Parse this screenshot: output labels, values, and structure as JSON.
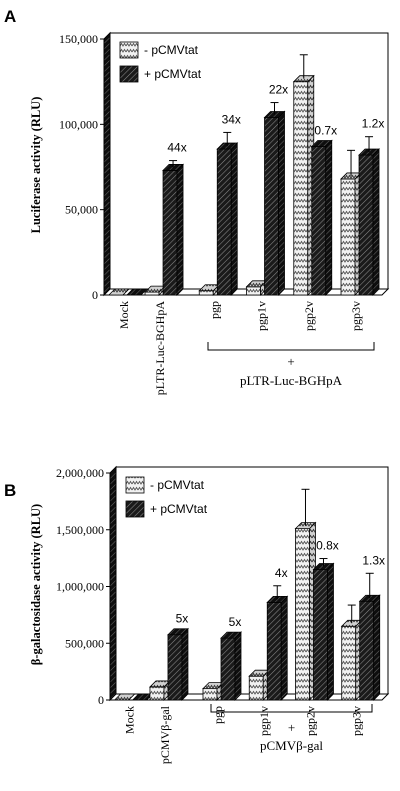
{
  "chart_data": [
    {
      "panel_label": "A",
      "type": "bar",
      "ylabel": "Luciferase activity (RLU)",
      "ylim": [
        0,
        150000
      ],
      "yticks": [
        0,
        50000,
        100000,
        150000
      ],
      "ytick_labels": [
        "0",
        "50,000",
        "100,000",
        "150,000"
      ],
      "categories": [
        "Mock",
        "pLTR-Luc-BGHpA",
        "pgp",
        "pgp1v",
        "pgp2v",
        "pgp3v"
      ],
      "series": [
        {
          "name": "- pCMVtat",
          "values": [
            0,
            1700,
            2500,
            4800,
            125000,
            68000
          ],
          "errors": [
            0,
            0,
            0,
            0,
            14000,
            15000
          ]
        },
        {
          "name": "+ pCMVtat",
          "values": [
            0,
            73000,
            85500,
            104000,
            87000,
            82000
          ],
          "errors": [
            0,
            4000,
            8000,
            7000,
            0,
            9000
          ]
        }
      ],
      "fold_labels": [
        "",
        "44x",
        "34x",
        "22x",
        "0.7x",
        "1.2x"
      ],
      "bracket_text": [
        "+",
        "pLTR-Luc-BGHpA"
      ],
      "legend": "top-left"
    },
    {
      "panel_label": "B",
      "type": "bar",
      "ylabel": "β-galactosidase activity (RLU)",
      "ylim": [
        0,
        2000000
      ],
      "yticks": [
        0,
        500000,
        1000000,
        1500000,
        2000000
      ],
      "ytick_labels": [
        "0",
        "500,000",
        "1,000,000",
        "1,500,000",
        "2,000,000"
      ],
      "categories": [
        "Mock",
        "pCMVβ-gal",
        "pgp",
        "pgp1v",
        "pgp2v",
        "pgp3v"
      ],
      "series": [
        {
          "name": "- pCMVtat",
          "values": [
            0,
            115000,
            100000,
            210000,
            1510000,
            650000
          ],
          "errors": [
            0,
            0,
            0,
            0,
            320000,
            160000
          ]
        },
        {
          "name": "+ pCMVtat",
          "values": [
            0,
            575000,
            545000,
            860000,
            1150000,
            870000
          ],
          "errors": [
            0,
            0,
            0,
            120000,
            70000,
            220000
          ]
        }
      ],
      "fold_labels": [
        "",
        "5x",
        "5x",
        "4x",
        "0.8x",
        "1.3x"
      ],
      "bracket_text": [
        "+",
        "pCMVβ-gal"
      ],
      "legend": "top-left"
    }
  ]
}
